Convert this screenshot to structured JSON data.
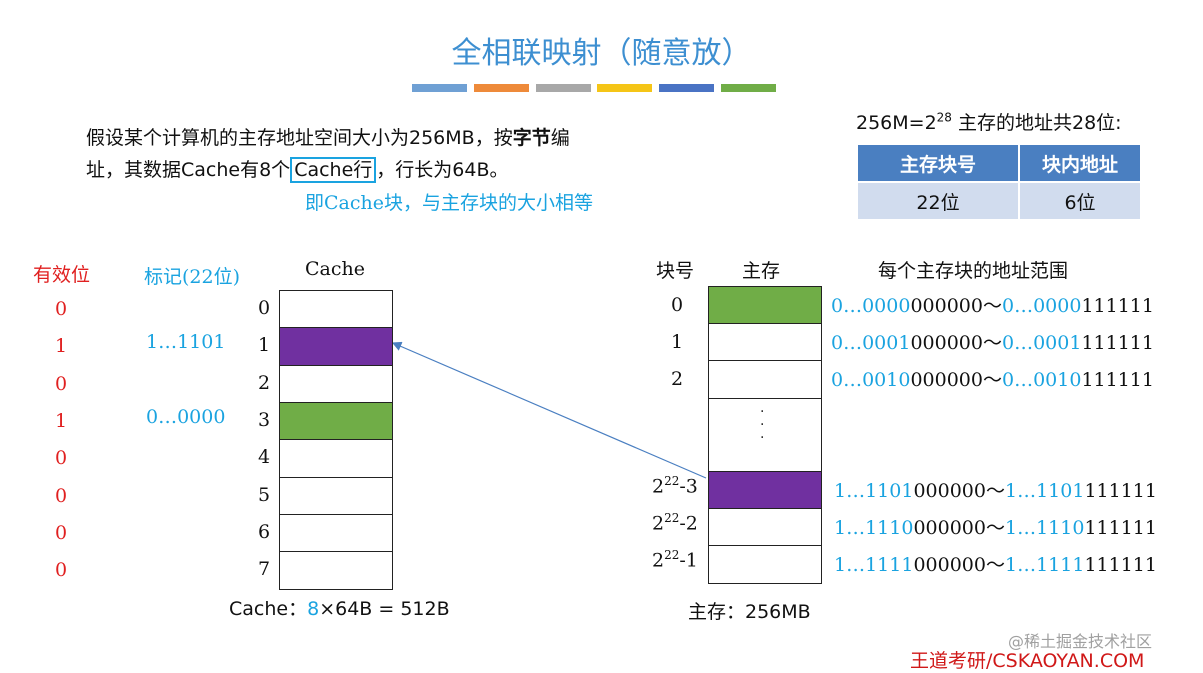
{
  "title": "全相联映射（随意放）",
  "stripe_colors": [
    "#6fa0d4",
    "#ee8a3a",
    "#a8a8a8",
    "#f5c516",
    "#4a73c4",
    "#70ad47"
  ],
  "intro": {
    "line1_a": "假设某个计算机的主存地址空间大小为256MB，按",
    "line1_bold": "字节",
    "line1_b": "编",
    "line2_a": "址，其数据Cache有8个",
    "line2_boxed": "Cache行",
    "line2_b": "，行长为64B。"
  },
  "note": "即Cache块，与主存块的大小相等",
  "address": {
    "line_a": "256M=2",
    "line_sup": "28",
    "line_b": " 主存的地址共28位:",
    "headers": [
      "主存块号",
      "块内地址"
    ],
    "values": [
      "22位",
      "6位"
    ]
  },
  "cache": {
    "valid_header": "有效位",
    "tag_header": "标记(22位)",
    "title": "Cache",
    "lines": [
      {
        "index": "0",
        "valid": "0",
        "tag": "",
        "fill": "none"
      },
      {
        "index": "1",
        "valid": "1",
        "tag": "1…1101",
        "fill": "purple"
      },
      {
        "index": "2",
        "valid": "0",
        "tag": "",
        "fill": "none"
      },
      {
        "index": "3",
        "valid": "1",
        "tag": "0…0000",
        "fill": "green"
      },
      {
        "index": "4",
        "valid": "0",
        "tag": "",
        "fill": "none"
      },
      {
        "index": "5",
        "valid": "0",
        "tag": "",
        "fill": "none"
      },
      {
        "index": "6",
        "valid": "0",
        "tag": "",
        "fill": "none"
      },
      {
        "index": "7",
        "valid": "0",
        "tag": "",
        "fill": "none"
      }
    ],
    "footer_a": "Cache：",
    "footer_count": "8",
    "footer_b": "×64B = 512B"
  },
  "memory": {
    "blocknum_header": "块号",
    "title": "主存",
    "range_header": "每个主存块的地址范围",
    "ellipsis": "·\n·\n·",
    "rows": [
      {
        "num": "0",
        "sup": "",
        "suffix": "",
        "fill": "green",
        "r1b": "0…0000",
        "r1k": "000000～",
        "r2b": "0…0000",
        "r2k": "111111"
      },
      {
        "num": "1",
        "sup": "",
        "suffix": "",
        "fill": "none",
        "r1b": "0…0001",
        "r1k": "000000～",
        "r2b": "0…0001",
        "r2k": "111111"
      },
      {
        "num": "2",
        "sup": "",
        "suffix": "",
        "fill": "none",
        "r1b": "0…0010",
        "r1k": "000000～",
        "r2b": "0…0010",
        "r2k": "111111"
      },
      {
        "num": "2",
        "sup": "22",
        "suffix": "-3",
        "fill": "purple",
        "r1b": "1…1101",
        "r1k": "000000～",
        "r2b": "1…1101",
        "r2k": "111111"
      },
      {
        "num": "2",
        "sup": "22",
        "suffix": "-2",
        "fill": "none",
        "r1b": "1…1110",
        "r1k": "000000～",
        "r2b": "1…1110",
        "r2k": "111111"
      },
      {
        "num": "2",
        "sup": "22",
        "suffix": "-1",
        "fill": "none",
        "r1b": "1…1111",
        "r1k": "000000～",
        "r2b": "1…1111",
        "r2k": "111111"
      }
    ],
    "footer": "主存：256MB"
  },
  "fill_colors": {
    "green": "#70ad47",
    "purple": "#7030a0",
    "none": "#ffffff"
  },
  "watermark": "@稀土掘金技术社区",
  "brand": "王道考研/CSKAOYAN.COM"
}
